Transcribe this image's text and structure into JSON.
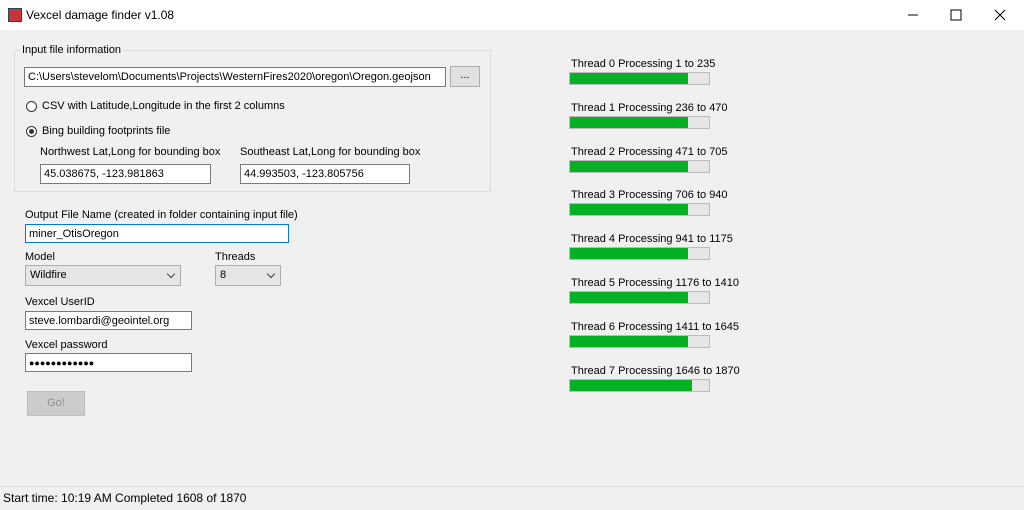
{
  "window": {
    "title": "Vexcel damage finder v1.08"
  },
  "input_group": {
    "title": "Input file information",
    "file_path": "C:\\Users\\stevelom\\Documents\\Projects\\WesternFires2020\\oregon\\Oregon.geojson",
    "browse_button": "...",
    "options": [
      {
        "label": "CSV with Latitude,Longitude in the first 2 columns",
        "selected": false
      },
      {
        "label": "Bing building footprints file",
        "selected": true
      }
    ],
    "northwest_label": "Northwest Lat,Long for bounding box",
    "northwest_value": "45.038675, -123.981863",
    "southeast_label": "Southeast Lat,Long for bounding box",
    "southeast_value": "44.993503, -123.805756"
  },
  "output": {
    "label": "Output File Name  (created in folder containing input file)",
    "value": "miner_OtisOregon"
  },
  "model": {
    "label": "Model",
    "value": "Wildfire"
  },
  "threads": {
    "label": "Threads",
    "value": "8"
  },
  "user": {
    "label": "Vexcel UserID",
    "value": "steve.lombardi@geointel.org"
  },
  "password": {
    "label": "Vexcel password",
    "value": "●●●●●●●●●●●●"
  },
  "go_button": "Go!",
  "progress": [
    {
      "label": "Thread 0 Processing 1 to 235",
      "percent": 85
    },
    {
      "label": "Thread 1 Processing 236 to 470",
      "percent": 85
    },
    {
      "label": "Thread 2 Processing 471 to 705",
      "percent": 85
    },
    {
      "label": "Thread 3 Processing 706 to 940",
      "percent": 85
    },
    {
      "label": "Thread 4 Processing 941 to 1175",
      "percent": 85
    },
    {
      "label": "Thread 5 Processing 1176 to 1410",
      "percent": 85
    },
    {
      "label": "Thread 6 Processing 1411 to 1645",
      "percent": 85
    },
    {
      "label": "Thread 7 Processing 1646 to 1870",
      "percent": 88
    }
  ],
  "status": "Start time: 10:19 AM  Completed 1608 of 1870"
}
